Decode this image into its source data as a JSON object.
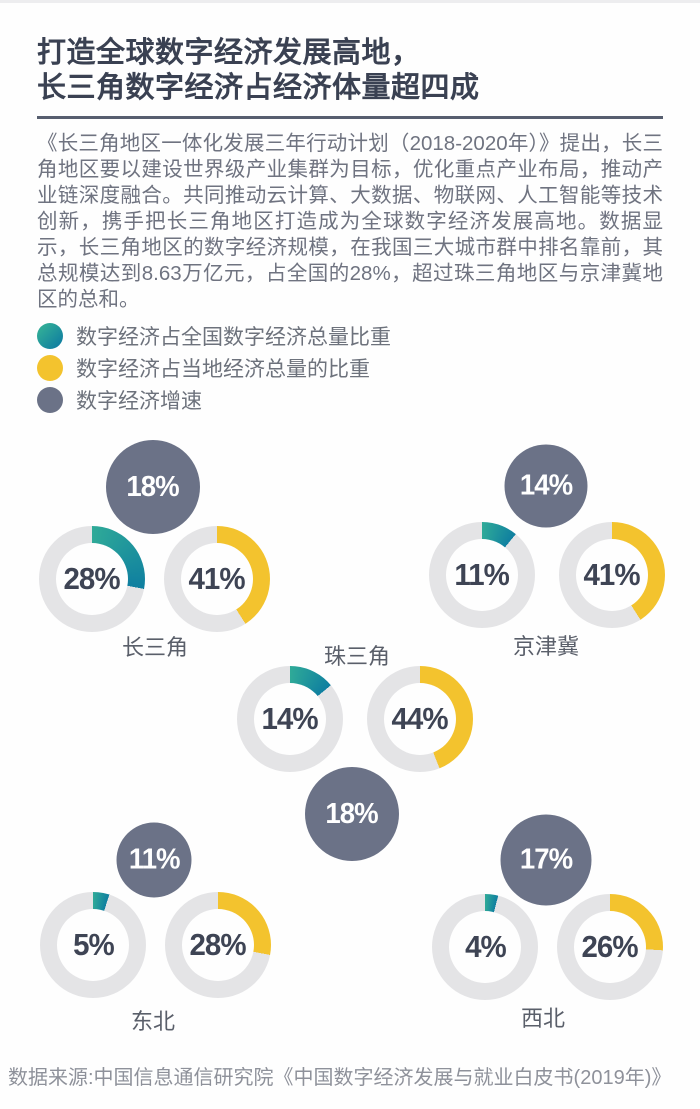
{
  "header": {
    "title_line1": "打造全球数字经济发展高地，",
    "title_line2": "长三角数字经济占经济体量超四成"
  },
  "intro": "《长三角地区一体化发展三年行动计划（2018-2020年）》提出，长三角地区要以建设世界级产业集群为目标，优化重点产业布局，推动产业链深度融合。共同推动云计算、大数据、物联网、人工智能等技术创新，携手把长三角地区打造成为全球数字经济发展高地。数据显示，长三角地区的数字经济规模，在我国三大城市群中排名靠前，其总规模达到8.63万亿元，占全国的28%，超过珠三角地区与京津冀地区的总和。",
  "legend": [
    {
      "label": "数字经济占全国数字经济总量比重",
      "color": "#1b96a0"
    },
    {
      "label": "数字经济占当地经济总量的比重",
      "color": "#f3c32e"
    },
    {
      "label": "数字经济增速",
      "color": "#6b7287"
    }
  ],
  "regions": [
    {
      "name": "长三角",
      "growth": "18%",
      "national_share": "28%",
      "local_share": "41%"
    },
    {
      "name": "京津冀",
      "growth": "14%",
      "national_share": "11%",
      "local_share": "41%"
    },
    {
      "name": "珠三角",
      "growth": "18%",
      "national_share": "14%",
      "local_share": "44%"
    },
    {
      "name": "东北",
      "growth": "11%",
      "national_share": "5%",
      "local_share": "28%"
    },
    {
      "name": "西北",
      "growth": "17%",
      "national_share": "4%",
      "local_share": "26%"
    }
  ],
  "footer": {
    "source": "数据来源:中国信息通信研究院《中国数字经济发展与就业白皮书(2019年)》"
  },
  "colors": {
    "teal": "#1b96a0",
    "teal_start": "#2faa98",
    "teal_end": "#0f7fa0",
    "yellow": "#f3c32e",
    "slate": "#6b7287",
    "track": "#e4e4e6",
    "title_dark": "#3a4152"
  },
  "chart_data": {
    "type": "pie",
    "subtype": "donut-and-bubble-infographic",
    "title": "打造全球数字经济发展高地，长三角数字经济占经济体量超四成",
    "categories": [
      "长三角",
      "京津冀",
      "珠三角",
      "东北",
      "西北"
    ],
    "series": [
      {
        "name": "数字经济占全国数字经济总量比重",
        "unit": "%",
        "style": "teal donut",
        "values": [
          28,
          11,
          14,
          5,
          4
        ]
      },
      {
        "name": "数字经济占当地经济总量的比重",
        "unit": "%",
        "style": "yellow donut",
        "values": [
          41,
          41,
          44,
          28,
          26
        ]
      },
      {
        "name": "数字经济增速",
        "unit": "%",
        "style": "gray bubble (size ∝ value)",
        "values": [
          18,
          14,
          18,
          11,
          17
        ]
      }
    ],
    "legend_position": "top-left",
    "annotations": [
      "8.63万亿元",
      "占全国的28%"
    ],
    "source": "数据来源:中国信息通信研究院《中国数字经济发展与就业白皮书(2019年)》"
  }
}
